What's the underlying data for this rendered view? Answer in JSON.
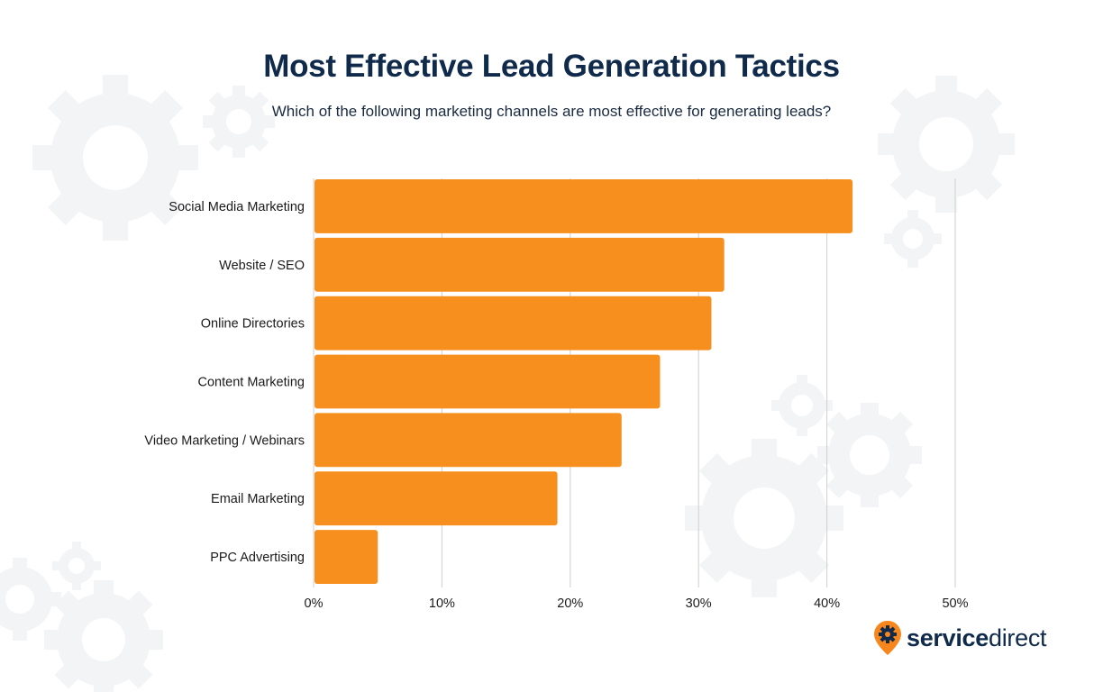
{
  "header": {
    "title": "Most Effective Lead Generation Tactics",
    "subtitle": "Which of the following marketing channels are most effective for generating leads?"
  },
  "logo": {
    "text_bold": "service",
    "text_light": "direct",
    "icon": "gear-pin-icon",
    "icon_color": "#f7861d"
  },
  "colors": {
    "bar": "#f78f1e",
    "gridline": "#cfcfcf",
    "title": "#0f2a4a",
    "background_gear": "#f3f4f6"
  },
  "chart_data": {
    "type": "bar",
    "orientation": "horizontal",
    "title": "Most Effective Lead Generation Tactics",
    "subtitle": "Which of the following marketing channels are most effective for generating leads?",
    "categories": [
      "Social Media Marketing",
      "Website / SEO",
      "Online Directories",
      "Content Marketing",
      "Video Marketing / Webinars",
      "Email Marketing",
      "PPC Advertising"
    ],
    "values": [
      42,
      32,
      31,
      27,
      24,
      19,
      5
    ],
    "unit": "%",
    "xlim": [
      0,
      50
    ],
    "xticks": [
      0,
      10,
      20,
      30,
      40,
      50
    ],
    "xtick_labels": [
      "0%",
      "10%",
      "20%",
      "30%",
      "40%",
      "50%"
    ],
    "grid": true,
    "legend": "none"
  }
}
